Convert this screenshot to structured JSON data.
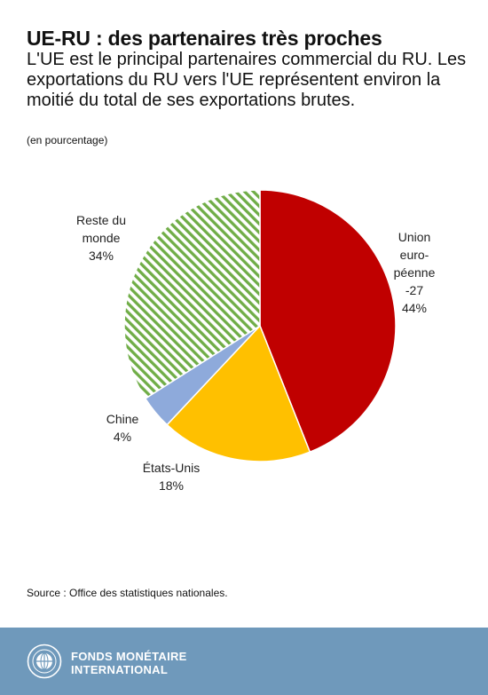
{
  "header": {
    "title": "UE-RU : des partenaires très proches",
    "subtitle": "L'UE est le principal partenaires commercial du RU. Les exportations du RU vers l'UE représentent environ la moitié du total de ses exportations brutes.",
    "unit": "(en pourcentage)"
  },
  "chart_data": {
    "type": "pie",
    "title": "",
    "slices": [
      {
        "label": [
          "Union",
          "euro-",
          "péenne",
          "-27"
        ],
        "value": 44,
        "value_label": "44%",
        "color": "#c00000",
        "pattern": "solid"
      },
      {
        "label": [
          "États-Unis"
        ],
        "value": 18,
        "value_label": "18%",
        "color": "#ffc000",
        "pattern": "solid"
      },
      {
        "label": [
          "Chine"
        ],
        "value": 4,
        "value_label": "4%",
        "color": "#8eaadb",
        "pattern": "solid"
      },
      {
        "label": [
          "Reste du",
          "monde"
        ],
        "value": 34,
        "value_label": "34%",
        "color": "#70ad47",
        "pattern": "diagonal-stripes"
      }
    ]
  },
  "source": "Source : Office des statistiques nationales.",
  "footer": {
    "org_line1": "FONDS MONÉTAIRE",
    "org_line2": "INTERNATIONAL",
    "logo_icon": "imf-seal-icon"
  }
}
